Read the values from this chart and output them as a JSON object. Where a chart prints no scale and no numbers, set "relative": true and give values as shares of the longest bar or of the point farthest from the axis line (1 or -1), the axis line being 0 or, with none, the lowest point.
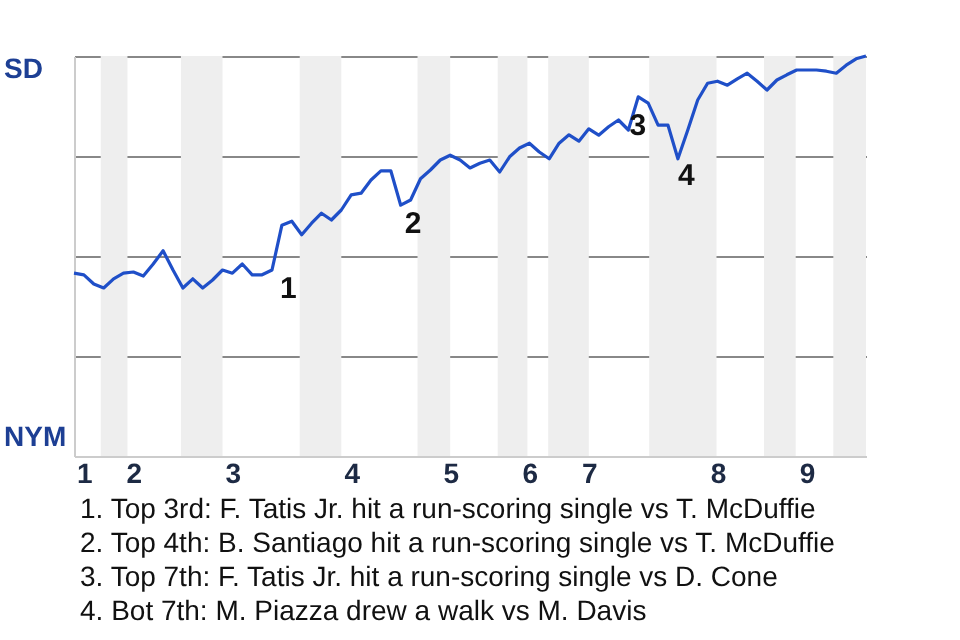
{
  "chart_data": {
    "type": "line",
    "relative": true,
    "categories": [
      null,
      "1",
      null,
      null,
      null,
      null,
      "2",
      null,
      null,
      null,
      null,
      null,
      null,
      null,
      null,
      null,
      "3",
      null,
      null,
      null,
      null,
      null,
      null,
      null,
      null,
      null,
      null,
      null,
      "4",
      null,
      null,
      null,
      null,
      null,
      null,
      null,
      null,
      null,
      "5",
      null,
      null,
      null,
      null,
      null,
      null,
      null,
      "6",
      null,
      null,
      null,
      null,
      null,
      "7",
      null,
      null,
      null,
      null,
      null,
      null,
      null,
      null,
      null,
      null,
      null,
      null,
      "8",
      null,
      null,
      null,
      null,
      null,
      null,
      null,
      null,
      "9",
      null,
      null,
      null,
      null,
      null,
      null
    ],
    "series": [
      {
        "color": "#1f4fc8",
        "values": [
          0.457,
          0.453,
          0.43,
          0.42,
          0.443,
          0.457,
          0.46,
          0.45,
          0.48,
          0.513,
          0.465,
          0.42,
          0.443,
          0.42,
          0.44,
          0.465,
          0.457,
          0.48,
          0.453,
          0.453,
          0.465,
          0.577,
          0.587,
          0.553,
          0.582,
          0.607,
          0.59,
          0.615,
          0.653,
          0.657,
          0.69,
          0.713,
          0.713,
          0.627,
          0.64,
          0.693,
          0.715,
          0.74,
          0.752,
          0.74,
          0.72,
          0.732,
          0.74,
          0.71,
          0.748,
          0.77,
          0.782,
          0.76,
          0.743,
          0.782,
          0.803,
          0.787,
          0.818,
          0.802,
          0.823,
          0.84,
          0.815,
          0.898,
          0.882,
          0.827,
          0.827,
          0.743,
          0.815,
          0.89,
          0.932,
          0.937,
          0.927,
          0.943,
          0.957,
          0.937,
          0.915,
          0.94,
          0.953,
          0.965,
          0.965,
          0.965,
          0.962,
          0.957,
          0.977,
          0.993,
          1
        ]
      }
    ],
    "grid": "y",
    "annotations": [
      "SD",
      "NYM",
      "1",
      "2",
      "3",
      "4",
      "1. Top 3rd: F. Tatis Jr. hit a run-scoring single vs T. McDuffie",
      "2. Top 4th: B. Santiago hit a run-scoring single vs T. McDuffie",
      "3. Top 7th: F. Tatis Jr. hit a run-scoring single vs D. Cone",
      "4. Bot 7th: M. Piazza drew a walk vs M. Davis"
    ]
  }
}
